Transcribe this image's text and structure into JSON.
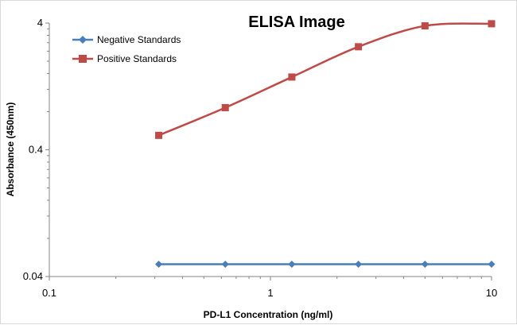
{
  "chart_data": {
    "type": "line",
    "title": "ELISA Image",
    "xlabel": "PD-L1 Concentration (ng/ml)",
    "ylabel": "Absorbance (450nm)",
    "x_scale": "log",
    "y_scale": "log",
    "xlim": [
      0.1,
      10
    ],
    "ylim": [
      0.04,
      4
    ],
    "x_ticks": [
      0.1,
      1,
      10
    ],
    "x_tick_labels": [
      "0.1",
      "1",
      "10"
    ],
    "y_ticks": [
      0.04,
      0.4,
      4
    ],
    "y_tick_labels": [
      "0.04",
      "0.4",
      "4"
    ],
    "grid": false,
    "legend_position": "top-left",
    "series": [
      {
        "name": "Negative Standards",
        "color": "#4a7ebb",
        "marker": "diamond",
        "x": [
          0.3125,
          0.625,
          1.25,
          2.5,
          5,
          10
        ],
        "y": [
          0.05,
          0.05,
          0.05,
          0.05,
          0.05,
          0.05
        ]
      },
      {
        "name": "Positive Standards",
        "color": "#be4b48",
        "marker": "square",
        "x": [
          0.3125,
          0.625,
          1.25,
          2.5,
          5,
          10
        ],
        "y": [
          0.52,
          0.86,
          1.5,
          2.6,
          3.8,
          3.95
        ]
      }
    ]
  }
}
